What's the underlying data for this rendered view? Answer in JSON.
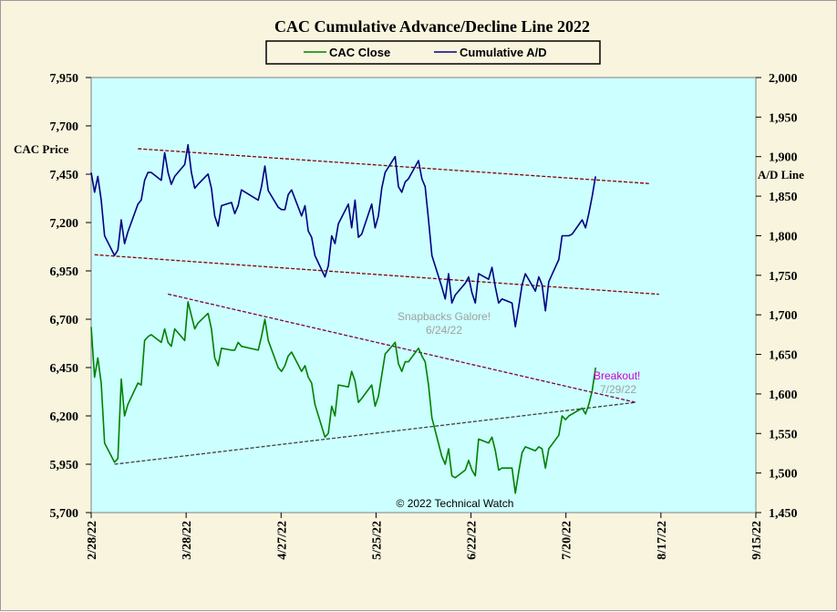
{
  "chart_data": {
    "type": "line",
    "title": "CAC Cumulative  Advance/Decline  Line  2022",
    "left_axis_label": "CAC Price",
    "right_axis_label": "A/D Line",
    "left_ylim": [
      5700,
      7950
    ],
    "left_ticks": [
      "5,700",
      "5,950",
      "6,200",
      "6,450",
      "6,700",
      "6,950",
      "7,200",
      "7,450",
      "7,700",
      "7,950"
    ],
    "right_ylim": [
      1450,
      2000
    ],
    "right_ticks": [
      "1,450",
      "1,500",
      "1,550",
      "1,600",
      "1,650",
      "1,700",
      "1,750",
      "1,800",
      "1,850",
      "1,900",
      "1,950",
      "2,000"
    ],
    "x_range": [
      "2022-02-28",
      "2022-09-15"
    ],
    "x_tick_labels": [
      "2/28/22",
      "3/28/22",
      "4/27/22",
      "5/25/22",
      "6/22/22",
      "7/20/22",
      "8/17/22",
      "9/15/22"
    ],
    "plot_background": "#ccffff",
    "grid": false,
    "legend_position": "top-center",
    "series": [
      {
        "name": "CAC Close",
        "color": "#008000",
        "axis": "left",
        "points": [
          [
            "2022-02-28",
            6660
          ],
          [
            "2022-03-01",
            6400
          ],
          [
            "2022-03-02",
            6500
          ],
          [
            "2022-03-03",
            6370
          ],
          [
            "2022-03-04",
            6060
          ],
          [
            "2022-03-07",
            5960
          ],
          [
            "2022-03-08",
            5980
          ],
          [
            "2022-03-09",
            6390
          ],
          [
            "2022-03-10",
            6200
          ],
          [
            "2022-03-11",
            6260
          ],
          [
            "2022-03-14",
            6370
          ],
          [
            "2022-03-15",
            6360
          ],
          [
            "2022-03-16",
            6590
          ],
          [
            "2022-03-17",
            6610
          ],
          [
            "2022-03-18",
            6620
          ],
          [
            "2022-03-21",
            6580
          ],
          [
            "2022-03-22",
            6650
          ],
          [
            "2022-03-23",
            6580
          ],
          [
            "2022-03-24",
            6560
          ],
          [
            "2022-03-25",
            6650
          ],
          [
            "2022-03-28",
            6590
          ],
          [
            "2022-03-29",
            6790
          ],
          [
            "2022-03-30",
            6720
          ],
          [
            "2022-03-31",
            6650
          ],
          [
            "2022-04-01",
            6680
          ],
          [
            "2022-04-04",
            6730
          ],
          [
            "2022-04-05",
            6650
          ],
          [
            "2022-04-06",
            6500
          ],
          [
            "2022-04-07",
            6460
          ],
          [
            "2022-04-08",
            6550
          ],
          [
            "2022-04-11",
            6540
          ],
          [
            "2022-04-12",
            6540
          ],
          [
            "2022-04-13",
            6580
          ],
          [
            "2022-04-14",
            6560
          ],
          [
            "2022-04-19",
            6540
          ],
          [
            "2022-04-20",
            6610
          ],
          [
            "2022-04-21",
            6700
          ],
          [
            "2022-04-22",
            6590
          ],
          [
            "2022-04-25",
            6450
          ],
          [
            "2022-04-26",
            6430
          ],
          [
            "2022-04-27",
            6460
          ],
          [
            "2022-04-28",
            6510
          ],
          [
            "2022-04-29",
            6530
          ],
          [
            "2022-05-02",
            6430
          ],
          [
            "2022-05-03",
            6460
          ],
          [
            "2022-05-04",
            6400
          ],
          [
            "2022-05-05",
            6370
          ],
          [
            "2022-05-06",
            6260
          ],
          [
            "2022-05-09",
            6090
          ],
          [
            "2022-05-10",
            6110
          ],
          [
            "2022-05-11",
            6250
          ],
          [
            "2022-05-12",
            6200
          ],
          [
            "2022-05-13",
            6360
          ],
          [
            "2022-05-16",
            6350
          ],
          [
            "2022-05-17",
            6430
          ],
          [
            "2022-05-18",
            6380
          ],
          [
            "2022-05-19",
            6270
          ],
          [
            "2022-05-20",
            6290
          ],
          [
            "2022-05-23",
            6360
          ],
          [
            "2022-05-24",
            6250
          ],
          [
            "2022-05-25",
            6300
          ],
          [
            "2022-05-26",
            6410
          ],
          [
            "2022-05-27",
            6520
          ],
          [
            "2022-05-30",
            6580
          ],
          [
            "2022-05-31",
            6470
          ],
          [
            "2022-06-01",
            6430
          ],
          [
            "2022-06-02",
            6480
          ],
          [
            "2022-06-03",
            6480
          ],
          [
            "2022-06-06",
            6550
          ],
          [
            "2022-06-07",
            6510
          ],
          [
            "2022-06-08",
            6480
          ],
          [
            "2022-06-09",
            6360
          ],
          [
            "2022-06-10",
            6190
          ],
          [
            "2022-06-13",
            5990
          ],
          [
            "2022-06-14",
            5950
          ],
          [
            "2022-06-15",
            6030
          ],
          [
            "2022-06-16",
            5890
          ],
          [
            "2022-06-17",
            5880
          ],
          [
            "2022-06-20",
            5920
          ],
          [
            "2022-06-21",
            5970
          ],
          [
            "2022-06-22",
            5920
          ],
          [
            "2022-06-23",
            5890
          ],
          [
            "2022-06-24",
            6080
          ],
          [
            "2022-06-27",
            6060
          ],
          [
            "2022-06-28",
            6090
          ],
          [
            "2022-06-29",
            6020
          ],
          [
            "2022-06-30",
            5920
          ],
          [
            "2022-07-01",
            5930
          ],
          [
            "2022-07-04",
            5930
          ],
          [
            "2022-07-05",
            5800
          ],
          [
            "2022-07-06",
            5910
          ],
          [
            "2022-07-07",
            6010
          ],
          [
            "2022-07-08",
            6040
          ],
          [
            "2022-07-11",
            6020
          ],
          [
            "2022-07-12",
            6040
          ],
          [
            "2022-07-13",
            6030
          ],
          [
            "2022-07-14",
            5930
          ],
          [
            "2022-07-15",
            6030
          ],
          [
            "2022-07-18",
            6100
          ],
          [
            "2022-07-19",
            6200
          ],
          [
            "2022-07-20",
            6180
          ],
          [
            "2022-07-21",
            6200
          ],
          [
            "2022-07-22",
            6210
          ],
          [
            "2022-07-25",
            6240
          ],
          [
            "2022-07-26",
            6210
          ],
          [
            "2022-07-27",
            6260
          ],
          [
            "2022-07-28",
            6330
          ],
          [
            "2022-07-29",
            6450
          ]
        ]
      },
      {
        "name": "Cumulative A/D",
        "color": "#000080",
        "axis": "right",
        "points": [
          [
            "2022-02-28",
            1880
          ],
          [
            "2022-03-01",
            1855
          ],
          [
            "2022-03-02",
            1875
          ],
          [
            "2022-03-03",
            1845
          ],
          [
            "2022-03-04",
            1800
          ],
          [
            "2022-03-07",
            1775
          ],
          [
            "2022-03-08",
            1782
          ],
          [
            "2022-03-09",
            1820
          ],
          [
            "2022-03-10",
            1790
          ],
          [
            "2022-03-11",
            1805
          ],
          [
            "2022-03-14",
            1840
          ],
          [
            "2022-03-15",
            1845
          ],
          [
            "2022-03-16",
            1870
          ],
          [
            "2022-03-17",
            1880
          ],
          [
            "2022-03-18",
            1880
          ],
          [
            "2022-03-21",
            1870
          ],
          [
            "2022-03-22",
            1905
          ],
          [
            "2022-03-23",
            1880
          ],
          [
            "2022-03-24",
            1865
          ],
          [
            "2022-03-25",
            1875
          ],
          [
            "2022-03-28",
            1890
          ],
          [
            "2022-03-29",
            1915
          ],
          [
            "2022-03-30",
            1880
          ],
          [
            "2022-03-31",
            1860
          ],
          [
            "2022-04-01",
            1865
          ],
          [
            "2022-04-04",
            1878
          ],
          [
            "2022-04-05",
            1860
          ],
          [
            "2022-04-06",
            1825
          ],
          [
            "2022-04-07",
            1812
          ],
          [
            "2022-04-08",
            1838
          ],
          [
            "2022-04-11",
            1842
          ],
          [
            "2022-04-12",
            1828
          ],
          [
            "2022-04-13",
            1838
          ],
          [
            "2022-04-14",
            1858
          ],
          [
            "2022-04-19",
            1845
          ],
          [
            "2022-04-20",
            1862
          ],
          [
            "2022-04-21",
            1888
          ],
          [
            "2022-04-22",
            1857
          ],
          [
            "2022-04-25",
            1836
          ],
          [
            "2022-04-26",
            1833
          ],
          [
            "2022-04-27",
            1833
          ],
          [
            "2022-04-28",
            1852
          ],
          [
            "2022-04-29",
            1858
          ],
          [
            "2022-05-02",
            1825
          ],
          [
            "2022-05-03",
            1838
          ],
          [
            "2022-05-04",
            1806
          ],
          [
            "2022-05-05",
            1798
          ],
          [
            "2022-05-06",
            1775
          ],
          [
            "2022-05-09",
            1748
          ],
          [
            "2022-05-10",
            1762
          ],
          [
            "2022-05-11",
            1800
          ],
          [
            "2022-05-12",
            1790
          ],
          [
            "2022-05-13",
            1815
          ],
          [
            "2022-05-16",
            1840
          ],
          [
            "2022-05-17",
            1810
          ],
          [
            "2022-05-18",
            1845
          ],
          [
            "2022-05-19",
            1798
          ],
          [
            "2022-05-20",
            1802
          ],
          [
            "2022-05-23",
            1840
          ],
          [
            "2022-05-24",
            1810
          ],
          [
            "2022-05-25",
            1825
          ],
          [
            "2022-05-26",
            1860
          ],
          [
            "2022-05-27",
            1880
          ],
          [
            "2022-05-30",
            1900
          ],
          [
            "2022-05-31",
            1862
          ],
          [
            "2022-06-01",
            1855
          ],
          [
            "2022-06-02",
            1868
          ],
          [
            "2022-06-03",
            1872
          ],
          [
            "2022-06-06",
            1895
          ],
          [
            "2022-06-07",
            1872
          ],
          [
            "2022-06-08",
            1862
          ],
          [
            "2022-06-09",
            1820
          ],
          [
            "2022-06-10",
            1775
          ],
          [
            "2022-06-13",
            1735
          ],
          [
            "2022-06-14",
            1720
          ],
          [
            "2022-06-15",
            1752
          ],
          [
            "2022-06-16",
            1715
          ],
          [
            "2022-06-17",
            1725
          ],
          [
            "2022-06-20",
            1740
          ],
          [
            "2022-06-21",
            1748
          ],
          [
            "2022-06-22",
            1728
          ],
          [
            "2022-06-23",
            1715
          ],
          [
            "2022-06-24",
            1752
          ],
          [
            "2022-06-27",
            1745
          ],
          [
            "2022-06-28",
            1760
          ],
          [
            "2022-06-29",
            1735
          ],
          [
            "2022-06-30",
            1715
          ],
          [
            "2022-07-01",
            1720
          ],
          [
            "2022-07-04",
            1715
          ],
          [
            "2022-07-05",
            1685
          ],
          [
            "2022-07-06",
            1710
          ],
          [
            "2022-07-07",
            1738
          ],
          [
            "2022-07-08",
            1752
          ],
          [
            "2022-07-11",
            1730
          ],
          [
            "2022-07-12",
            1748
          ],
          [
            "2022-07-13",
            1738
          ],
          [
            "2022-07-14",
            1705
          ],
          [
            "2022-07-15",
            1742
          ],
          [
            "2022-07-18",
            1770
          ],
          [
            "2022-07-19",
            1800
          ],
          [
            "2022-07-20",
            1800
          ],
          [
            "2022-07-21",
            1800
          ],
          [
            "2022-07-22",
            1802
          ],
          [
            "2022-07-25",
            1820
          ],
          [
            "2022-07-26",
            1810
          ],
          [
            "2022-07-27",
            1828
          ],
          [
            "2022-07-28",
            1850
          ],
          [
            "2022-07-29",
            1875
          ]
        ]
      }
    ],
    "trendlines": [
      {
        "axis": "right",
        "from": [
          "2022-03-14",
          1910
        ],
        "to": [
          "2022-08-14",
          1866
        ],
        "color": "#8b0000",
        "dash": "dashed"
      },
      {
        "axis": "right",
        "from": [
          "2022-03-01",
          1776
        ],
        "to": [
          "2022-08-17",
          1726
        ],
        "color": "#8b0000",
        "dash": "dashed"
      },
      {
        "axis": "left",
        "from": [
          "2022-03-23",
          6830
        ],
        "to": [
          "2022-08-10",
          6270
        ],
        "color": "#800040",
        "dash": "dashed"
      },
      {
        "axis": "left",
        "from": [
          "2022-03-07",
          5950
        ],
        "to": [
          "2022-08-10",
          6270
        ],
        "color": "#404040",
        "dash": "dashed"
      }
    ],
    "annotations": [
      {
        "text": "Snapbacks  Galore!",
        "color": "#a0a0a0"
      },
      {
        "text": "6/24/22",
        "color": "#a0a0a0"
      },
      {
        "text": "Breakout!",
        "color": "#cc00cc"
      },
      {
        "text": "7/29/22",
        "color": "#a0a0a0"
      }
    ],
    "copyright": "© 2022 Technical  Watch"
  }
}
